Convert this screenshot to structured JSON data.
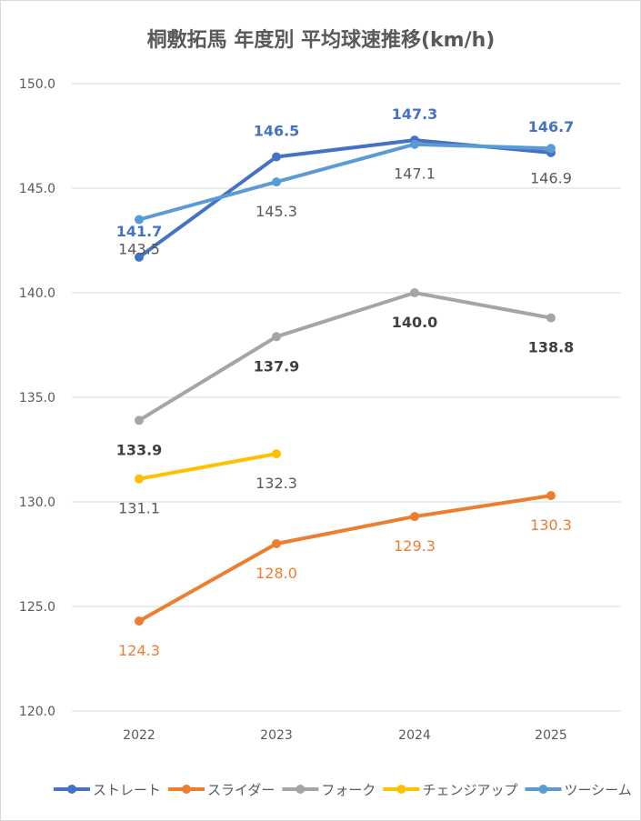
{
  "chart_data": {
    "type": "line",
    "title": "桐敷拓馬 年度別 平均球速推移(km/h)",
    "xlabel": "",
    "ylabel": "",
    "categories": [
      "2022",
      "2023",
      "2024",
      "2025"
    ],
    "ylim": [
      120,
      150
    ],
    "yticks": [
      120,
      125,
      130,
      135,
      140,
      145,
      150
    ],
    "grid": true,
    "legend_position": "bottom",
    "series": [
      {
        "name": "ストレート",
        "color": "#4472C4",
        "label_color": "#4472C4",
        "label_bold": true,
        "label_pos": "above",
        "values": [
          141.7,
          146.5,
          147.3,
          146.7
        ]
      },
      {
        "name": "スライダー",
        "color": "#ED7D31",
        "label_color": "#ED7D31",
        "label_bold": false,
        "label_pos": "below",
        "values": [
          124.3,
          128.0,
          129.3,
          130.3
        ]
      },
      {
        "name": "フォーク",
        "color": "#A5A5A5",
        "label_color": "#404040",
        "label_bold": true,
        "label_pos": "below",
        "values": [
          133.9,
          137.9,
          140.0,
          138.8
        ]
      },
      {
        "name": "チェンジアップ",
        "color": "#FFC000",
        "label_color": "#595959",
        "label_bold": false,
        "label_pos": "below",
        "values": [
          131.1,
          132.3,
          null,
          null
        ]
      },
      {
        "name": "ツーシーム",
        "color": "#5B9BD5",
        "label_color": "#595959",
        "label_bold": false,
        "label_pos": "below",
        "values": [
          143.5,
          145.3,
          147.1,
          146.9
        ]
      }
    ]
  }
}
